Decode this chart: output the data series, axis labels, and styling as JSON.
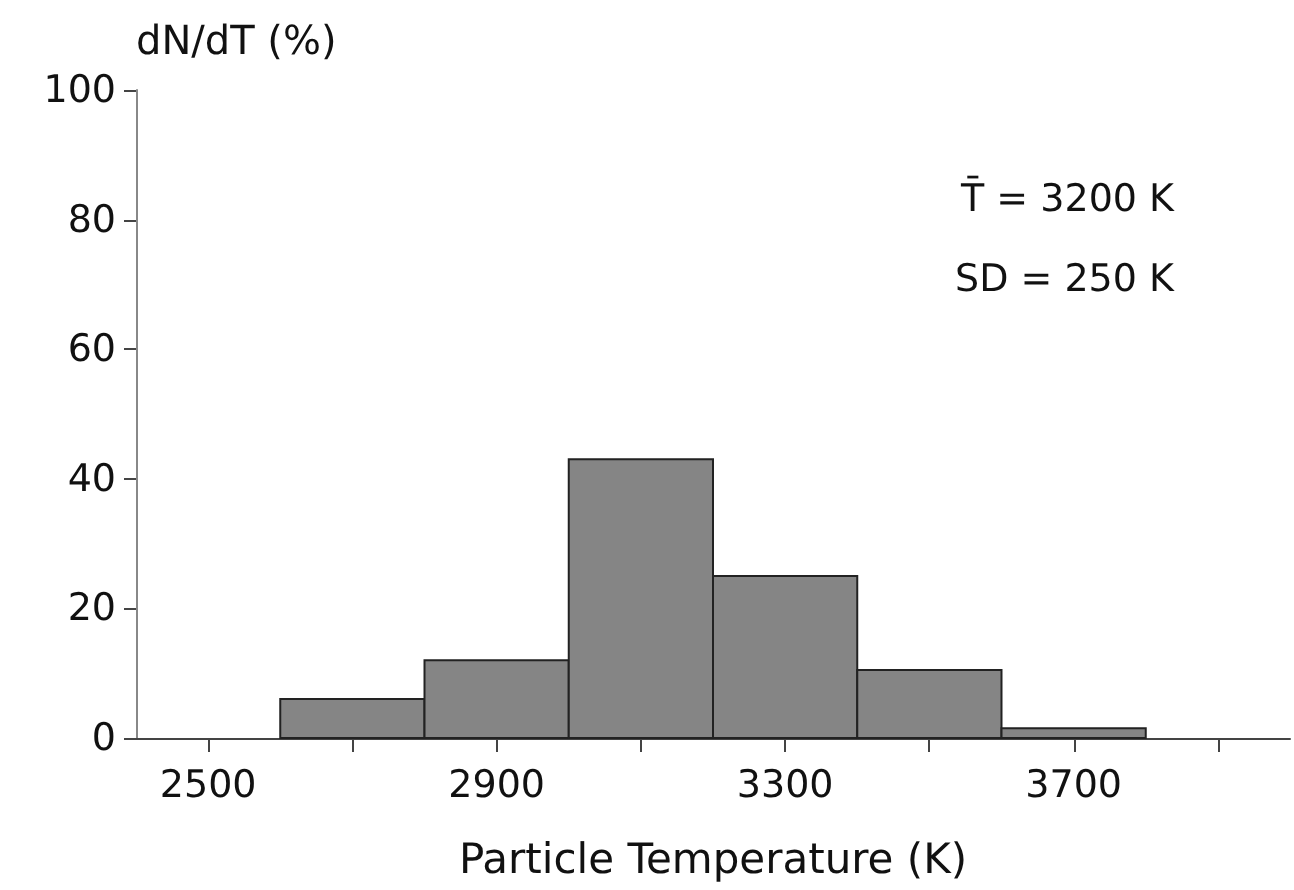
{
  "chart_data": {
    "type": "histogram",
    "xlabel": "Particle Temperature (K)",
    "ylabel": "dN/dT (%)",
    "bins": [
      2600,
      2800,
      3000,
      3200,
      3400,
      3600,
      3800
    ],
    "values": [
      6,
      12,
      43,
      25,
      10.5,
      1.5
    ],
    "color": "#858585",
    "xlim": [
      2400,
      4000
    ],
    "xticks": [
      2500,
      {
        "value": 2700,
        "label": null
      },
      2900,
      {
        "value": 3100,
        "label": null
      },
      3300,
      {
        "value": 3500,
        "label": null
      },
      3700,
      {
        "value": 3900,
        "label": null
      }
    ],
    "ylim": [
      0,
      100
    ],
    "yticks": [
      0,
      20,
      40,
      60,
      80,
      100
    ],
    "annotations": [
      "T̄ = 3200 K",
      "SD = 250 K"
    ],
    "grid": false
  }
}
